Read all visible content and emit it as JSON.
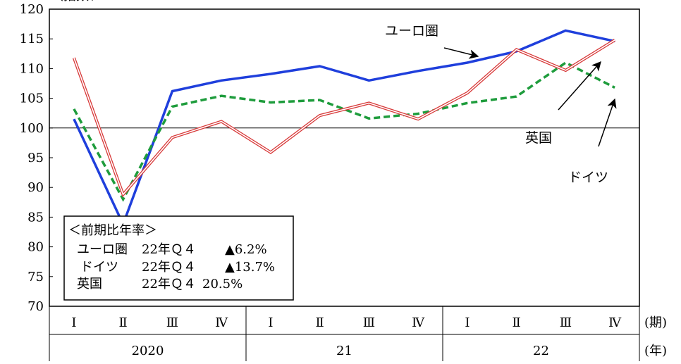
{
  "chart_data": {
    "type": "line",
    "title": "",
    "ylabel_partial": "（指数、",
    "ylim": [
      70,
      120
    ],
    "yticks": [
      70,
      75,
      80,
      85,
      90,
      95,
      100,
      105,
      110,
      115,
      120
    ],
    "reference_line": 100,
    "categories": [
      "Ⅰ",
      "Ⅱ",
      "Ⅲ",
      "Ⅳ",
      "Ⅰ",
      "Ⅱ",
      "Ⅲ",
      "Ⅳ",
      "Ⅰ",
      "Ⅱ",
      "Ⅲ",
      "Ⅳ"
    ],
    "quarter_axis_label": "(期)",
    "year_axis_label": "(年)",
    "year_groups": [
      {
        "label": "2020",
        "span": 4
      },
      {
        "label": "21",
        "span": 4
      },
      {
        "label": "22",
        "span": 4
      }
    ],
    "series": [
      {
        "name": "ユーロ圏",
        "color": "#1f3fdc",
        "style": "solid-thick",
        "values": [
          101.5,
          83.8,
          106.2,
          108.0,
          109.1,
          110.4,
          108.0,
          109.6,
          111.0,
          112.9,
          116.4,
          114.6
        ]
      },
      {
        "name": "ドイツ",
        "color": "#1e9c3c",
        "style": "dashed",
        "values": [
          103.2,
          88.0,
          103.6,
          105.4,
          104.3,
          104.7,
          101.6,
          102.4,
          104.2,
          105.3,
          111.0,
          106.8
        ]
      },
      {
        "name": "英国",
        "color": "#d83a3a",
        "style": "double",
        "values": [
          111.8,
          88.8,
          98.4,
          101.1,
          95.9,
          102.1,
          104.2,
          101.5,
          105.9,
          113.2,
          109.7,
          114.8
        ]
      }
    ],
    "annotations": {
      "euro": "ユーロ圏",
      "uk": "英国",
      "germany": "ドイツ"
    },
    "legend_box": {
      "title": "＜前期比年率＞",
      "rows": [
        {
          "name": "ユーロ圏",
          "period": "22年Ｑ４",
          "value": "▲6.2%"
        },
        {
          "name": "ドイツ",
          "period": "22年Ｑ４",
          "value": "▲13.7%"
        },
        {
          "name": "英国",
          "period": "22年Ｑ４",
          "value": "20.5%"
        }
      ]
    }
  }
}
